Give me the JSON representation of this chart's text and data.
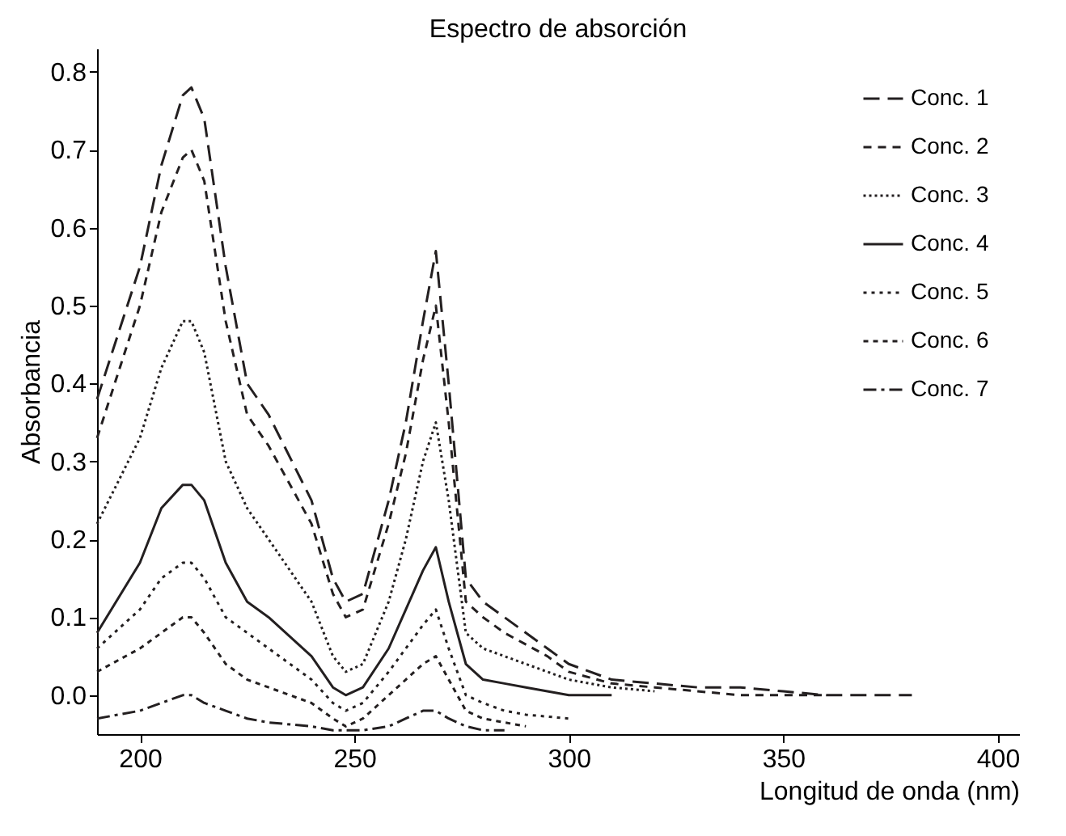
{
  "chart_data": {
    "type": "line",
    "title": "Espectro de absorción",
    "xlabel": "Longitud de onda (nm)",
    "ylabel": "Absorbancia",
    "xlim": [
      190,
      405
    ],
    "xticks": [
      200,
      250,
      300,
      350,
      400
    ],
    "ylim": [
      -0.05,
      0.83
    ],
    "yticks": [
      {
        "value": 0,
        "label": "0.0"
      },
      0.1,
      0.2,
      0.3,
      0.4,
      0.5,
      0.6,
      0.7,
      0.8
    ],
    "grid": false,
    "legend": "top right",
    "marker": "none",
    "series": [
      {
        "name": "Conc. 1",
        "color": "#231f20",
        "line_style": "dashed",
        "x": [
          190,
          200,
          205,
          210,
          212,
          215,
          220,
          225,
          230,
          240,
          245,
          248,
          252,
          258,
          262,
          266,
          269,
          272,
          276,
          280,
          285,
          290,
          295,
          300,
          310,
          320,
          330,
          340,
          350,
          360,
          370,
          380
        ],
        "values": [
          0.38,
          0.55,
          0.68,
          0.77,
          0.78,
          0.74,
          0.55,
          0.4,
          0.36,
          0.25,
          0.15,
          0.12,
          0.13,
          0.25,
          0.35,
          0.48,
          0.57,
          0.4,
          0.15,
          0.12,
          0.1,
          0.08,
          0.06,
          0.04,
          0.02,
          0.015,
          0.01,
          0.01,
          0.005,
          0.0,
          0.0,
          0.0
        ]
      },
      {
        "name": "Conc. 2",
        "color": "#231f20",
        "line_style": "dashed",
        "x": [
          190,
          200,
          205,
          210,
          212,
          215,
          220,
          225,
          230,
          240,
          245,
          248,
          252,
          258,
          262,
          266,
          269,
          272,
          276,
          280,
          285,
          290,
          295,
          300,
          310,
          320,
          330,
          340,
          350,
          360
        ],
        "values": [
          0.33,
          0.5,
          0.62,
          0.69,
          0.7,
          0.66,
          0.48,
          0.36,
          0.32,
          0.22,
          0.13,
          0.1,
          0.11,
          0.22,
          0.31,
          0.43,
          0.5,
          0.35,
          0.12,
          0.1,
          0.08,
          0.065,
          0.05,
          0.03,
          0.015,
          0.01,
          0.005,
          0.0,
          0.0,
          0.0
        ]
      },
      {
        "name": "Conc. 3",
        "color": "#231f20",
        "line_style": "dotted",
        "x": [
          190,
          200,
          205,
          210,
          212,
          215,
          220,
          225,
          230,
          240,
          245,
          248,
          252,
          258,
          262,
          266,
          269,
          272,
          276,
          280,
          285,
          290,
          295,
          300,
          310,
          320
        ],
        "values": [
          0.22,
          0.33,
          0.42,
          0.48,
          0.48,
          0.44,
          0.3,
          0.24,
          0.2,
          0.12,
          0.05,
          0.03,
          0.04,
          0.12,
          0.2,
          0.3,
          0.35,
          0.25,
          0.08,
          0.06,
          0.05,
          0.04,
          0.03,
          0.02,
          0.01,
          0.005
        ]
      },
      {
        "name": "Conc. 4",
        "color": "#231f20",
        "line_style": "solid",
        "x": [
          190,
          200,
          205,
          210,
          212,
          215,
          220,
          225,
          230,
          240,
          245,
          248,
          252,
          258,
          262,
          266,
          269,
          272,
          276,
          280,
          285,
          290,
          295,
          300,
          310
        ],
        "values": [
          0.08,
          0.17,
          0.24,
          0.27,
          0.27,
          0.25,
          0.17,
          0.12,
          0.1,
          0.05,
          0.01,
          0.0,
          0.01,
          0.06,
          0.11,
          0.16,
          0.19,
          0.12,
          0.04,
          0.02,
          0.015,
          0.01,
          0.005,
          0.0,
          0.0
        ]
      },
      {
        "name": "Conc. 5",
        "color": "#231f20",
        "line_style": "dotted",
        "x": [
          190,
          200,
          205,
          210,
          212,
          215,
          220,
          225,
          230,
          240,
          245,
          248,
          252,
          258,
          262,
          266,
          269,
          272,
          276,
          280,
          285,
          290,
          300
        ],
        "values": [
          0.06,
          0.11,
          0.15,
          0.17,
          0.17,
          0.15,
          0.1,
          0.08,
          0.06,
          0.02,
          -0.01,
          -0.02,
          -0.01,
          0.03,
          0.06,
          0.09,
          0.11,
          0.06,
          0.0,
          -0.01,
          -0.02,
          -0.025,
          -0.03
        ]
      },
      {
        "name": "Conc. 6",
        "color": "#231f20",
        "line_style": "dotted",
        "x": [
          190,
          200,
          205,
          210,
          212,
          215,
          220,
          225,
          230,
          240,
          245,
          248,
          252,
          258,
          262,
          266,
          269,
          272,
          276,
          280,
          285,
          290
        ],
        "values": [
          0.03,
          0.06,
          0.08,
          0.1,
          0.1,
          0.08,
          0.04,
          0.02,
          0.01,
          -0.01,
          -0.03,
          -0.04,
          -0.03,
          0.0,
          0.02,
          0.04,
          0.05,
          0.02,
          -0.02,
          -0.03,
          -0.035,
          -0.04
        ]
      },
      {
        "name": "Conc. 7",
        "color": "#231f20",
        "line_style": "dashed",
        "x": [
          190,
          200,
          205,
          210,
          212,
          215,
          220,
          225,
          230,
          240,
          245,
          248,
          252,
          258,
          262,
          266,
          269,
          272,
          276,
          280,
          285
        ],
        "values": [
          -0.03,
          -0.02,
          -0.01,
          0.0,
          0.0,
          -0.01,
          -0.02,
          -0.03,
          -0.035,
          -0.04,
          -0.045,
          -0.045,
          -0.045,
          -0.04,
          -0.03,
          -0.02,
          -0.02,
          -0.03,
          -0.04,
          -0.045,
          -0.045
        ]
      }
    ]
  }
}
